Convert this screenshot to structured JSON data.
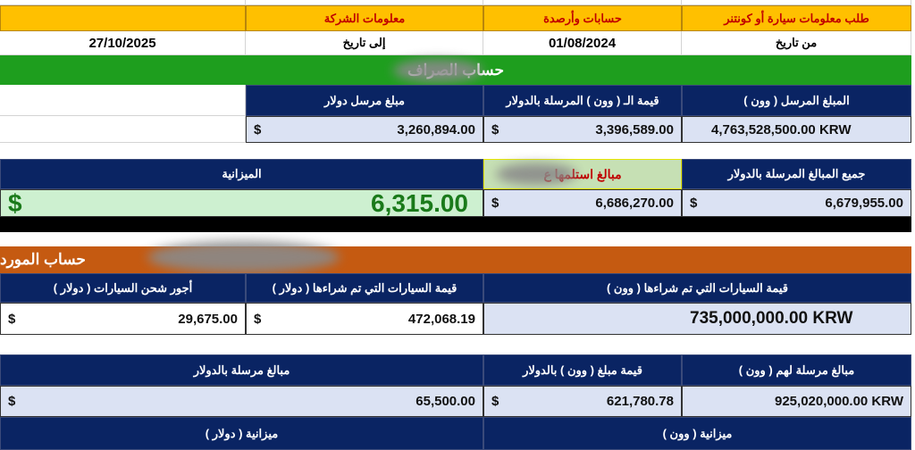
{
  "header": {
    "company_info": "معلومات الشركة",
    "accounts": "حسابات وأرصدة",
    "request": "طلب معلومات سيارة أو كونتنر"
  },
  "dates": {
    "from_label": "من تاريخ",
    "from_value": "01/08/2024",
    "to_label": "إلى تاريخ",
    "to_value": "27/10/2025"
  },
  "exchanger": {
    "title": "حساب الصراف",
    "col_sent_won": "المبلغ المرسل ( وون )",
    "col_won_usd": "قيمة الـ ( وون ) المرسلة بالدولار",
    "col_sent_usd": "مبلغ مرسل دولار",
    "sent_won": "4,763,528,500.00 KRW",
    "won_usd": "3,396,589.00",
    "sent_usd": "3,260,894.00",
    "currency": "$"
  },
  "totals": {
    "all_sent_label": "جميع المبالغ المرسلة بالدولار",
    "received_label": "مبالغ استلمها ع",
    "budget_label": "الميزانية",
    "all_sent": "6,679,955.00",
    "received": "6,686,270.00",
    "budget": "6,315.00",
    "currency": "$"
  },
  "supplier": {
    "title": "حساب المورد",
    "col_cars_won": "قيمة السيارات التي تم شراءها ( وون )",
    "col_cars_usd": "قيمة السيارات التي تم شراءها ( دولار )",
    "col_shipping": "أجور شحن السيارات ( دولار )",
    "cars_won": "735,000,000.00 KRW",
    "cars_usd": "472,068.19",
    "shipping": "29,675.00",
    "col_sent_won": "مبالغ مرسلة لهم ( وون )",
    "col_won_usd": "قيمة مبلغ ( وون ) بالدولار",
    "col_sent_usd": "مبالغ مرسلة بالدولار",
    "sent_won": "925,020,000.00 KRW",
    "won_usd": "621,780.78",
    "sent_usd": "65,500.00",
    "budget_won": "ميزانية ( وون )",
    "budget_usd": "ميزانية ( دولار )",
    "currency": "$"
  },
  "colors": {
    "yellow": "#ffc000",
    "navy": "#0a2463",
    "green": "#1e9e1e",
    "orange": "#c55a11",
    "budget_green": "#1a7a1a"
  }
}
